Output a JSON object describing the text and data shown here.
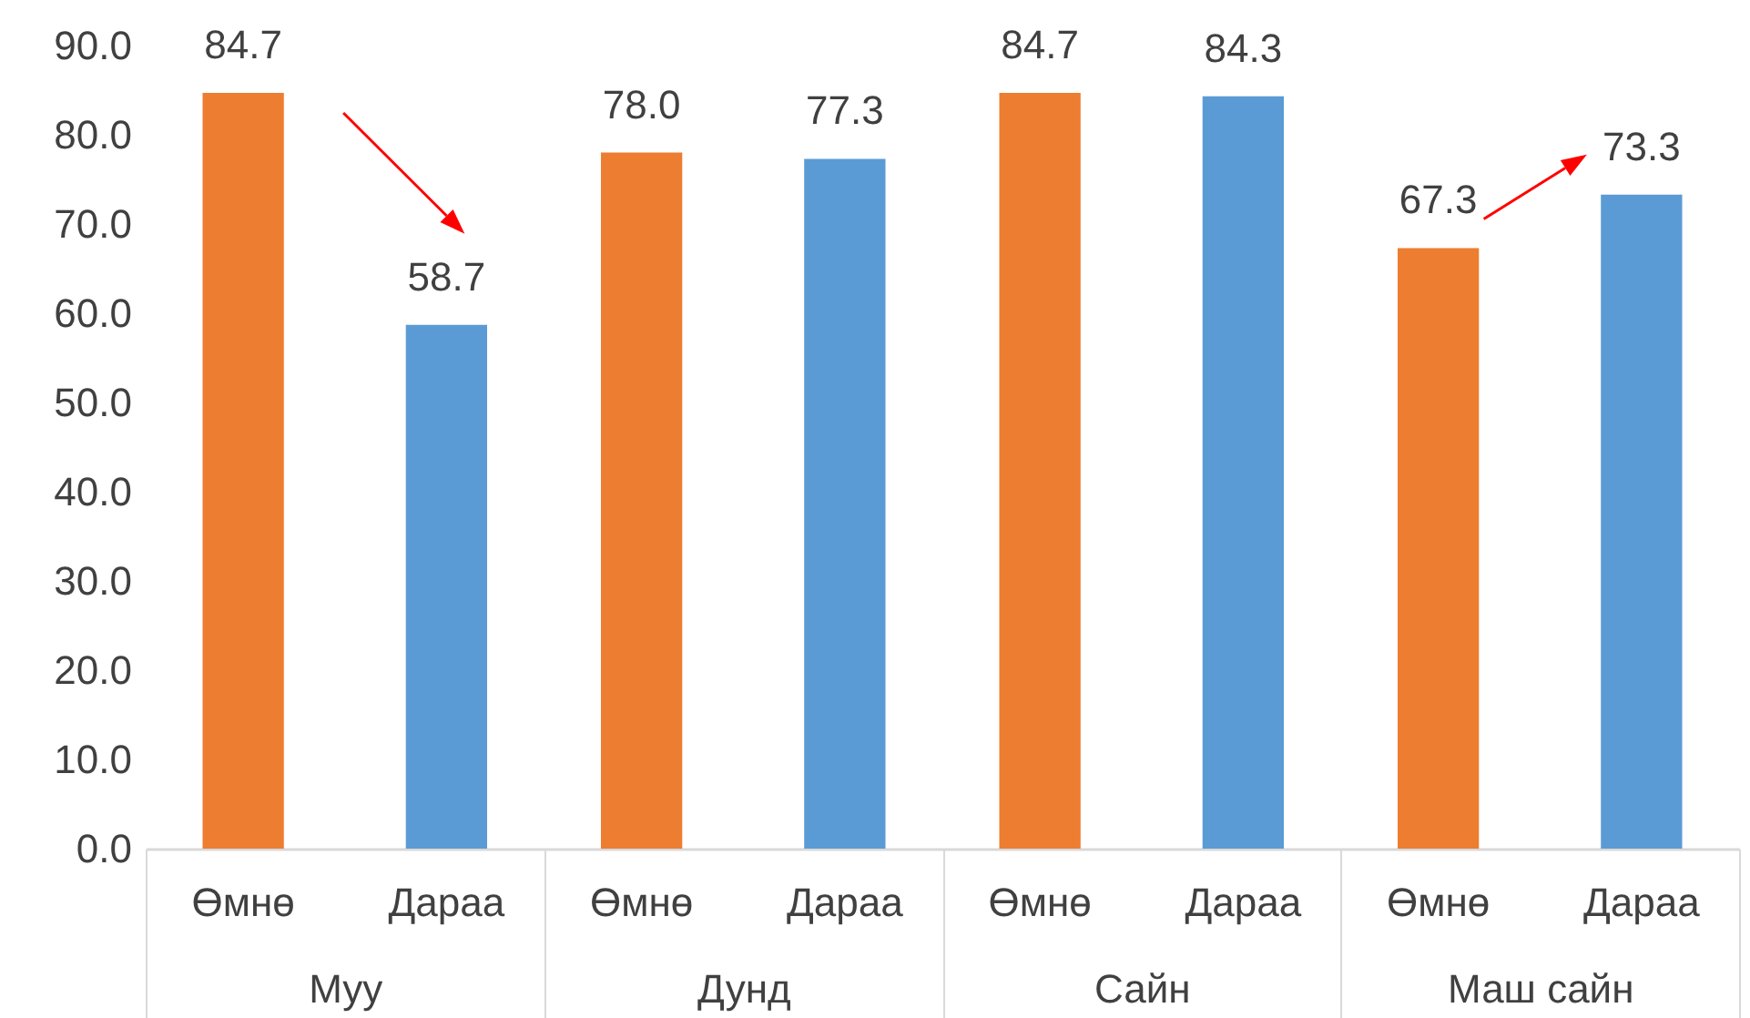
{
  "chart_data": {
    "type": "bar",
    "categories": [
      "Муу",
      "Дунд",
      "Сайн",
      "Маш сайн"
    ],
    "series": [
      {
        "name": "Өмнө",
        "color": "#ed7d31",
        "values": [
          84.7,
          78.0,
          84.7,
          67.3
        ],
        "value_labels": [
          "84.7",
          "78.0",
          "84.7",
          "67.3"
        ]
      },
      {
        "name": "Дараа",
        "color": "#5b9bd5",
        "values": [
          58.7,
          77.3,
          84.3,
          73.3
        ],
        "value_labels": [
          "58.7",
          "77.3",
          "84.3",
          "73.3"
        ]
      }
    ],
    "ylim": [
      0,
      90
    ],
    "yticks": [
      {
        "value": 0,
        "label": "0.0"
      },
      {
        "value": 10,
        "label": "10.0"
      },
      {
        "value": 20,
        "label": "20.0"
      },
      {
        "value": 30,
        "label": "30.0"
      },
      {
        "value": 40,
        "label": "40.0"
      },
      {
        "value": 50,
        "label": "50.0"
      },
      {
        "value": 60,
        "label": "60.0"
      },
      {
        "value": 70,
        "label": "70.0"
      },
      {
        "value": 80,
        "label": "80.0"
      },
      {
        "value": 90,
        "label": "90.0"
      }
    ],
    "grid": false,
    "legend": false
  }
}
